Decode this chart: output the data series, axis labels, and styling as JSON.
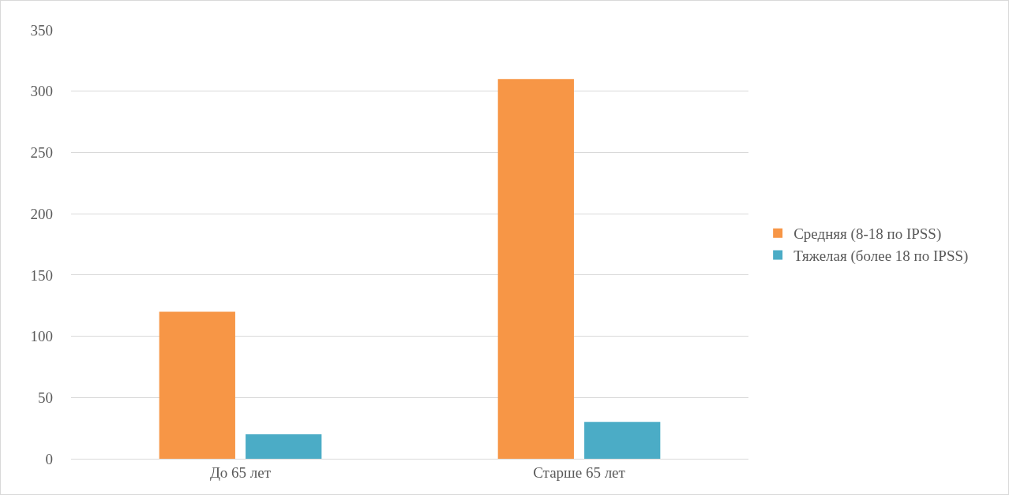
{
  "chart_data": {
    "type": "bar",
    "categories": [
      "До 65 лет",
      "Старше 65 лет"
    ],
    "series": [
      {
        "name": "Средняя (8-18 по IPSS)",
        "color": "#f79646",
        "values": [
          120,
          310
        ]
      },
      {
        "name": "Тяжелая (более 18 по IPSS)",
        "color": "#4bacc6",
        "values": [
          20,
          30
        ]
      }
    ],
    "ylim": [
      0,
      350
    ],
    "yticks": [
      0,
      50,
      100,
      150,
      200,
      250,
      300,
      350
    ],
    "grid": "y",
    "legend": "right"
  }
}
